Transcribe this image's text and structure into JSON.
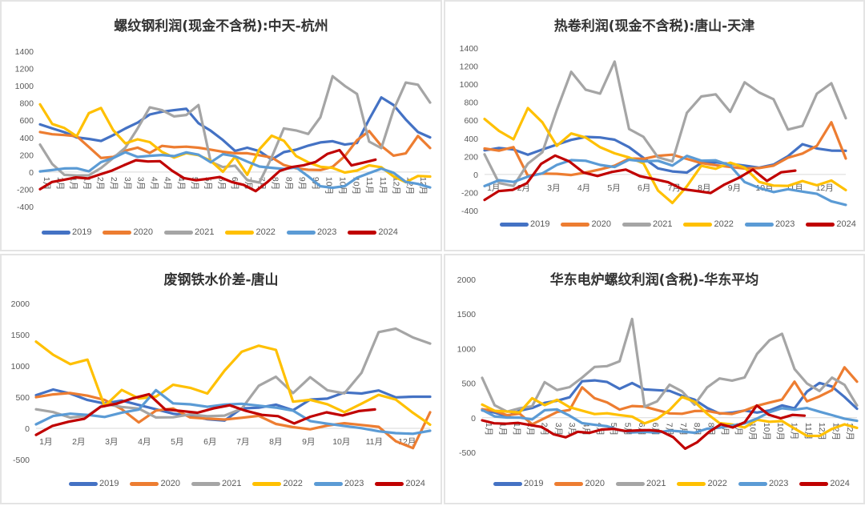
{
  "legend_years": [
    "2019",
    "2020",
    "2021",
    "2022",
    "2023",
    "2024"
  ],
  "series_colors": {
    "2019": "#4472c4",
    "2020": "#ed7d31",
    "2021": "#a5a5a5",
    "2022": "#ffc000",
    "2023": "#5b9bd5",
    "2024": "#c00000"
  },
  "chart_data": [
    {
      "type": "line",
      "title": "螺纹钢利润(现金不含税):中天-杭州",
      "xlabel": "",
      "ylabel": "",
      "ylim": [
        -400,
        1400
      ],
      "yticks": [
        1400,
        1200,
        1000,
        800,
        600,
        400,
        200,
        0,
        -200,
        -400
      ],
      "xticks": [
        "1月",
        "1月",
        "1月",
        "1月",
        "2月",
        "2月",
        "3月",
        "3月",
        "4月",
        "4月",
        "4月",
        "5月",
        "5月",
        "6月",
        "6月",
        "7月",
        "7月",
        "8月",
        "8月",
        "9月",
        "9月",
        "10月",
        "10月",
        "10月",
        "11月",
        "11月",
        "12月",
        "12月",
        "12月"
      ],
      "x_axis_style": "rotated",
      "grid": false,
      "legend_position": "bottom",
      "series": [
        {
          "name": "2019",
          "values": [
            560,
            520,
            480,
            420,
            400,
            370,
            430,
            500,
            560,
            650,
            680,
            700,
            720,
            560,
            480,
            380,
            260,
            300,
            260,
            160,
            240,
            260,
            300,
            330,
            340,
            300,
            320,
            600,
            860,
            780,
            620,
            480,
            420
          ]
        },
        {
          "name": "2020",
          "values": [
            450,
            420,
            410,
            400,
            280,
            160,
            180,
            260,
            300,
            240,
            320,
            300,
            300,
            280,
            250,
            220,
            200,
            200,
            180,
            160,
            80,
            50,
            40,
            40,
            80,
            200,
            380,
            480,
            300,
            180,
            200,
            400,
            260
          ]
        },
        {
          "name": "2021",
          "values": [
            300,
            80,
            -40,
            -40,
            -30,
            60,
            180,
            300,
            520,
            760,
            720,
            640,
            650,
            760,
            100,
            40,
            60,
            -100,
            -120,
            180,
            520,
            500,
            460,
            650,
            1120,
            1000,
            900,
            340,
            260,
            700,
            1020,
            1000,
            800
          ]
        },
        {
          "name": "2022",
          "values": [
            780,
            560,
            520,
            430,
            700,
            760,
            500,
            340,
            380,
            340,
            220,
            150,
            200,
            180,
            120,
            0,
            180,
            -20,
            280,
            440,
            380,
            200,
            120,
            60,
            40,
            -20,
            0,
            60,
            40,
            -60,
            -120,
            -40,
            -40
          ]
        },
        {
          "name": "2023",
          "values": [
            20,
            40,
            60,
            60,
            20,
            120,
            160,
            220,
            160,
            170,
            180,
            170,
            220,
            200,
            120,
            220,
            200,
            140,
            80,
            60,
            40,
            50,
            -60,
            -180,
            -200,
            -180,
            -80,
            -20,
            40,
            0,
            -100,
            -120,
            -160
          ]
        },
        {
          "name": "2024",
          "values": [
            -180,
            -100,
            -80,
            -60,
            -80,
            -40,
            0,
            60,
            120,
            110,
            120,
            20,
            -60,
            -80,
            -60,
            -40,
            -100,
            -140,
            -220,
            -120,
            0,
            40,
            60,
            100,
            200,
            250,
            80,
            120,
            160
          ]
        }
      ]
    },
    {
      "type": "line",
      "title": "热卷利润(现金不含税):唐山-天津",
      "xlabel": "",
      "ylabel": "",
      "ylim": [
        -400,
        1400
      ],
      "yticks": [
        1400,
        1200,
        1000,
        800,
        600,
        400,
        200,
        0,
        -200,
        -400
      ],
      "xticks": [
        "1月",
        "2月",
        "3月",
        "4月",
        "5月",
        "6月",
        "7月",
        "8月",
        "9月",
        "10月",
        "11月",
        "12月"
      ],
      "grid": false,
      "legend_position": "bottom",
      "series": [
        {
          "name": "2019",
          "values": [
            260,
            280,
            260,
            200,
            260,
            320,
            380,
            420,
            420,
            400,
            320,
            200,
            80,
            40,
            20,
            120,
            120,
            100,
            80,
            60,
            100,
            200,
            340,
            300,
            280,
            280
          ]
        },
        {
          "name": "2020",
          "values": [
            300,
            280,
            320,
            0,
            20,
            10,
            -10,
            10,
            40,
            80,
            160,
            160,
            200,
            220,
            180,
            140,
            120,
            100,
            80,
            80,
            100,
            180,
            220,
            300,
            560,
            160
          ]
        },
        {
          "name": "2021",
          "values": [
            240,
            -80,
            -120,
            120,
            240,
            700,
            1120,
            920,
            880,
            1240,
            500,
            420,
            200,
            160,
            700,
            880,
            900,
            700,
            1020,
            900,
            820,
            480,
            520,
            880,
            1000,
            620
          ]
        },
        {
          "name": "2022",
          "values": [
            620,
            480,
            380,
            720,
            560,
            300,
            440,
            400,
            300,
            240,
            200,
            140,
            -160,
            -300,
            -120,
            100,
            60,
            120,
            60,
            -100,
            -140,
            -140,
            -80,
            -120,
            -60,
            -160
          ]
        },
        {
          "name": "2023",
          "values": [
            -140,
            -80,
            -100,
            -40,
            0,
            100,
            160,
            160,
            120,
            100,
            180,
            160,
            160,
            100,
            200,
            140,
            140,
            80,
            -100,
            -160,
            -200,
            -160,
            -180,
            -200,
            -280,
            -320
          ]
        },
        {
          "name": "2024",
          "values": [
            -300,
            -200,
            -180,
            -100,
            120,
            220,
            160,
            40,
            0,
            40,
            60,
            -20,
            -60,
            -100,
            -180,
            -200,
            -220,
            -120,
            -40,
            60,
            -60,
            40,
            60
          ]
        }
      ]
    },
    {
      "type": "line",
      "title": "废钢铁水价差-唐山",
      "xlabel": "",
      "ylabel": "",
      "ylim": [
        -500,
        2000
      ],
      "yticks": [
        2000,
        1500,
        1000,
        500,
        0,
        -500
      ],
      "xticks": [
        "1月",
        "2月",
        "3月",
        "4月",
        "5月",
        "6月",
        "7月",
        "8月",
        "9月",
        "10月",
        "11月",
        "12月"
      ],
      "grid": false,
      "legend_position": "bottom",
      "series": [
        {
          "name": "2019",
          "values": [
            540,
            640,
            580,
            480,
            420,
            460,
            380,
            300,
            220,
            180,
            120,
            100,
            300,
            320,
            380,
            300,
            480,
            500,
            600,
            580,
            620,
            500,
            500,
            490
          ]
        },
        {
          "name": "2020",
          "values": [
            480,
            520,
            540,
            500,
            440,
            300,
            100,
            300,
            340,
            200,
            180,
            160,
            180,
            200,
            60,
            0,
            -40,
            20,
            60,
            40,
            20,
            -200,
            -300,
            280
          ]
        },
        {
          "name": "2021",
          "values": [
            280,
            240,
            160,
            200,
            400,
            360,
            340,
            200,
            200,
            240,
            200,
            200,
            300,
            660,
            800,
            540,
            800,
            600,
            560,
            900,
            1560,
            1620,
            1480,
            1380
          ]
        },
        {
          "name": "2022",
          "values": [
            1380,
            1180,
            1040,
            1120,
            380,
            640,
            500,
            520,
            700,
            640,
            540,
            900,
            1200,
            1300,
            1240,
            420,
            460,
            400,
            280,
            420,
            560,
            480,
            260,
            60
          ]
        },
        {
          "name": "2023",
          "values": [
            80,
            220,
            260,
            240,
            200,
            260,
            300,
            600,
            380,
            360,
            320,
            360,
            380,
            360,
            340,
            300,
            140,
            100,
            60,
            20,
            -40,
            -80,
            -100,
            -60
          ]
        },
        {
          "name": "2024",
          "values": [
            -80,
            60,
            120,
            160,
            340,
            380,
            460,
            520,
            280,
            260,
            240,
            320,
            380,
            300,
            240,
            220,
            100,
            200,
            260,
            200,
            260,
            280
          ]
        }
      ]
    },
    {
      "type": "line",
      "title": "华东电炉螺纹利润(含税)-华东平均",
      "xlabel": "",
      "ylabel": "",
      "ylim": [
        -500,
        2000
      ],
      "yticks": [
        2000,
        1500,
        1000,
        500,
        0,
        -500
      ],
      "xticks": [
        "1月",
        "1月",
        "1月",
        "2月",
        "2月",
        "3月",
        "3月",
        "4月",
        "4月",
        "5月",
        "5月",
        "6月",
        "6月",
        "7月",
        "7月",
        "8月",
        "8月",
        "9月",
        "9月",
        "10月",
        "10月",
        "10月",
        "11月",
        "11月",
        "12月",
        "12月",
        "12月"
      ],
      "x_axis_style": "rotated",
      "grid": false,
      "legend_position": "bottom",
      "series": [
        {
          "name": "2019",
          "values": [
            100,
            60,
            0,
            80,
            120,
            200,
            240,
            300,
            540,
            560,
            540,
            440,
            520,
            420,
            400,
            380,
            300,
            240,
            120,
            40,
            60,
            100,
            80,
            120,
            200,
            160,
            400,
            520,
            460,
            300,
            120
          ]
        },
        {
          "name": "2020",
          "values": [
            140,
            120,
            60,
            80,
            -80,
            0,
            80,
            100,
            420,
            260,
            200,
            100,
            160,
            160,
            120,
            80,
            80,
            120,
            120,
            80,
            60,
            100,
            160,
            200,
            240,
            500,
            220,
            300,
            400,
            740,
            540
          ]
        },
        {
          "name": "2021",
          "values": [
            600,
            200,
            100,
            140,
            160,
            500,
            380,
            420,
            560,
            720,
            740,
            820,
            1440,
            180,
            260,
            500,
            400,
            200,
            440,
            560,
            520,
            560,
            900,
            1100,
            1200,
            700,
            500,
            400,
            600,
            500,
            200
          ]
        },
        {
          "name": "2022",
          "values": [
            200,
            100,
            80,
            60,
            260,
            160,
            240,
            140,
            100,
            60,
            80,
            60,
            40,
            -60,
            0,
            120,
            300,
            220,
            40,
            -100,
            -120,
            -160,
            -40,
            -60,
            -40,
            -140,
            -240,
            -240,
            -140,
            -80,
            -140
          ]
        },
        {
          "name": "2023",
          "values": [
            100,
            0,
            -20,
            -20,
            -40,
            100,
            120,
            40,
            -60,
            -80,
            -100,
            -160,
            -200,
            -200,
            -220,
            -200,
            -220,
            -240,
            -180,
            -160,
            -120,
            -80,
            0,
            100,
            160,
            140,
            160,
            100,
            40,
            -20,
            -60
          ]
        },
        {
          "name": "2024",
          "values": [
            -60,
            -100,
            -100,
            -80,
            -100,
            -120,
            -220,
            -260,
            -180,
            -200,
            -160,
            -160,
            -200,
            -200,
            -200,
            -220,
            -300,
            -460,
            -360,
            -200,
            -80,
            -120,
            -40,
            200,
            60,
            0,
            40,
            20
          ]
        }
      ]
    }
  ]
}
